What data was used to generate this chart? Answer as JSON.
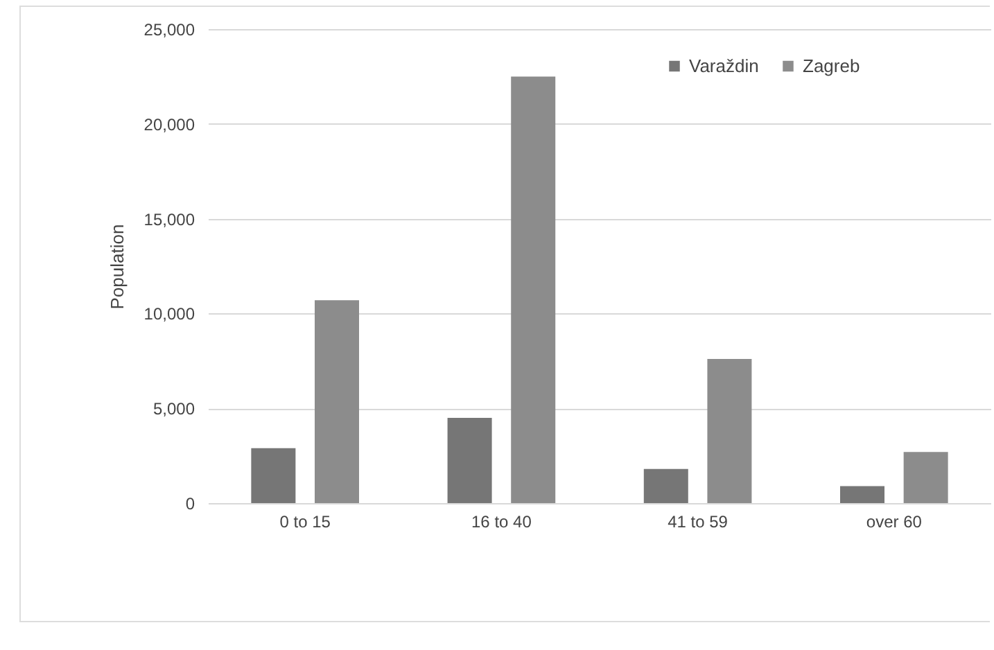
{
  "chart_data": {
    "type": "bar",
    "ylabel": "Population",
    "categories": [
      "0 to 15",
      "16 to 40",
      "41 to 59",
      "over 60"
    ],
    "series": [
      {
        "name": "Varaždin",
        "color": "#767676",
        "values": [
          2900,
          4500,
          1800,
          900
        ]
      },
      {
        "name": "Zagreb",
        "color": "#8c8c8c",
        "values": [
          10700,
          22500,
          7600,
          2700
        ]
      }
    ],
    "ylim": [
      0,
      25000
    ],
    "yticks": [
      {
        "value": 0,
        "label": "0"
      },
      {
        "value": 5000,
        "label": "5,000"
      },
      {
        "value": 10000,
        "label": "10,000"
      },
      {
        "value": 15000,
        "label": "15,000"
      },
      {
        "value": 20000,
        "label": "20,000"
      },
      {
        "value": 25000,
        "label": "25,000"
      }
    ],
    "grid": "y",
    "legend": "top right"
  }
}
